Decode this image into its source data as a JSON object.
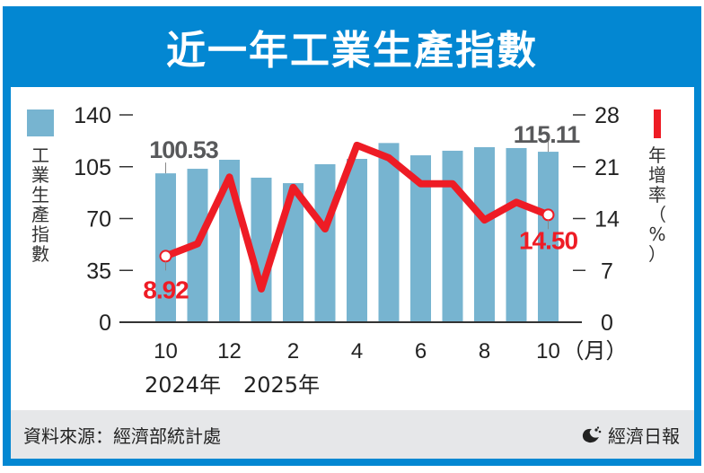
{
  "title": "近一年工業生產指數",
  "legend": {
    "bar_label": "工業生產指數",
    "line_label": "年增率（%）",
    "bar_label_chars": [
      "工",
      "業",
      "生",
      "產",
      "指",
      "數"
    ],
    "line_label_chars": [
      "年",
      "增",
      "率",
      "（",
      "%",
      "）"
    ]
  },
  "footer": {
    "source": "資料來源：經濟部統計處",
    "brand": "經濟日報"
  },
  "colors": {
    "frame": "#0387d2",
    "bar": "#77b4d0",
    "line": "#ee1c25",
    "footer_bg": "#e6e7e9",
    "annotation_gray": "#58595b"
  },
  "annotations": {
    "first_bar": "100.53",
    "last_bar": "115.11",
    "first_line": "8.92",
    "last_line": "14.50"
  },
  "x_axis": {
    "ticks": [
      "10",
      "12",
      "2",
      "4",
      "6",
      "8",
      "10"
    ],
    "unit": "（月）",
    "years": [
      "2024年",
      "2025年"
    ]
  },
  "y_left": {
    "ticks": [
      "0",
      "35",
      "70",
      "105",
      "140"
    ]
  },
  "y_right": {
    "ticks": [
      "0",
      "7",
      "14",
      "21",
      "28"
    ]
  },
  "chart_data": {
    "type": "bar+line",
    "title": "近一年工業生產指數",
    "categories": [
      "2024-10",
      "2024-11",
      "2024-12",
      "2025-01",
      "2025-02",
      "2025-03",
      "2025-04",
      "2025-05",
      "2025-06",
      "2025-07",
      "2025-08",
      "2025-09",
      "2025-10"
    ],
    "series": [
      {
        "name": "工業生產指數",
        "type": "bar",
        "axis": "left",
        "values": [
          100.53,
          103.6,
          109.7,
          97.6,
          93.9,
          106.7,
          110.3,
          121.0,
          112.7,
          115.8,
          118.2,
          117.6,
          115.11
        ]
      },
      {
        "name": "年增率（%）",
        "type": "line",
        "axis": "right",
        "values": [
          8.92,
          10.6,
          19.6,
          4.5,
          18.2,
          12.6,
          23.9,
          22.2,
          18.7,
          18.7,
          13.8,
          16.2,
          14.5
        ]
      }
    ],
    "xlabel": "月",
    "ylabel_left": "工業生產指數",
    "ylabel_right": "年增率（%）",
    "ylim_left": [
      0,
      140
    ],
    "ylim_right": [
      0,
      28
    ],
    "yticks_left": [
      0,
      35,
      70,
      105,
      140
    ],
    "yticks_right": [
      0,
      7,
      14,
      21,
      28
    ],
    "xtick_labels": [
      "10",
      "12",
      "2",
      "4",
      "6",
      "8",
      "10（月）"
    ],
    "year_labels": [
      "2024年",
      "2025年"
    ],
    "grid": false,
    "legend_position": "vertical labels beside axes"
  }
}
